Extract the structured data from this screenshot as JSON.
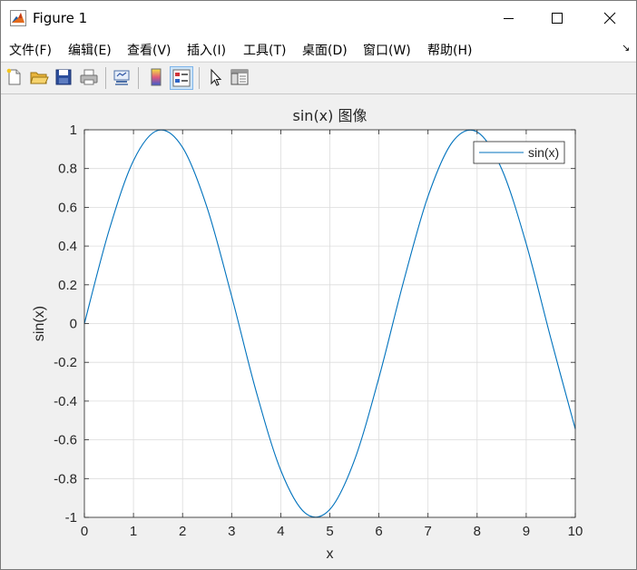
{
  "window": {
    "title": "Figure 1"
  },
  "menu": {
    "items": [
      "文件(F)",
      "编辑(E)",
      "查看(V)",
      "插入(I)",
      "工具(T)",
      "桌面(D)",
      "窗口(W)",
      "帮助(H)"
    ],
    "more_glyph": "↘"
  },
  "toolbar": {
    "buttons": [
      "new-figure-icon",
      "open-file-icon",
      "save-icon",
      "print-icon",
      "link-plot-icon",
      "colorbar-icon",
      "legend-icon",
      "pointer-icon",
      "property-inspector-icon"
    ],
    "active": "legend-icon"
  },
  "colors": {
    "line": "#0072bd",
    "grid": "#dcdcdc",
    "axes_bg": "#ffffff",
    "figure_bg": "#f0f0f0",
    "text": "#262626"
  },
  "chart_data": {
    "type": "line",
    "title": "sin(x) 图像",
    "xlabel": "x",
    "ylabel": "sin(x)",
    "xlim": [
      0,
      10
    ],
    "ylim": [
      -1,
      1
    ],
    "x_ticks": [
      "0",
      "1",
      "2",
      "3",
      "4",
      "5",
      "6",
      "7",
      "8",
      "9",
      "10"
    ],
    "y_ticks": [
      "-1",
      "-0.8",
      "-0.6",
      "-0.4",
      "-0.2",
      "0",
      "0.2",
      "0.4",
      "0.6",
      "0.8",
      "1"
    ],
    "grid": true,
    "legend_position": "top-right",
    "series": [
      {
        "name": "sin(x)",
        "x": [
          0,
          0.5,
          1,
          1.5,
          2,
          2.5,
          3,
          3.5,
          4,
          4.5,
          5,
          5.5,
          6,
          6.5,
          7,
          7.5,
          8,
          8.5,
          9,
          9.5,
          10
        ],
        "y": [
          0,
          0.479,
          0.841,
          0.997,
          0.909,
          0.598,
          0.141,
          -0.351,
          -0.757,
          -0.978,
          -0.959,
          -0.706,
          -0.279,
          0.215,
          0.657,
          0.938,
          0.989,
          0.798,
          0.412,
          -0.075,
          -0.544
        ]
      }
    ]
  }
}
